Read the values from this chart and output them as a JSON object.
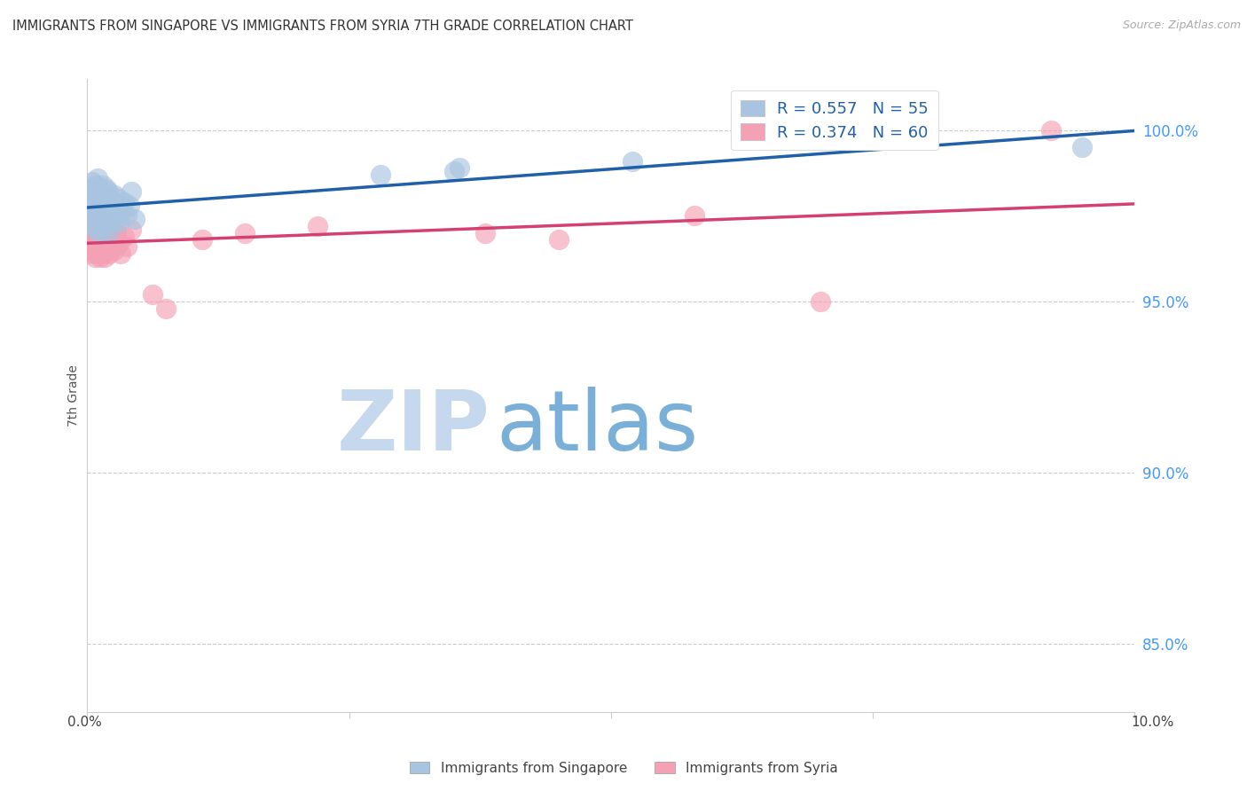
{
  "title": "IMMIGRANTS FROM SINGAPORE VS IMMIGRANTS FROM SYRIA 7TH GRADE CORRELATION CHART",
  "source": "Source: ZipAtlas.com",
  "ylabel": "7th Grade",
  "xlim": [
    0.0,
    10.0
  ],
  "ylim": [
    83.0,
    101.5
  ],
  "yticks": [
    85.0,
    90.0,
    95.0,
    100.0
  ],
  "ytick_labels": [
    "85.0%",
    "90.0%",
    "95.0%",
    "100.0%"
  ],
  "singapore_R": 0.557,
  "singapore_N": 55,
  "syria_R": 0.374,
  "syria_N": 60,
  "singapore_color": "#a8c4e0",
  "singapore_line_color": "#2060a8",
  "syria_color": "#f4a0b5",
  "syria_line_color": "#d44070",
  "watermark_zip": "ZIP",
  "watermark_atlas": "atlas",
  "watermark_zip_color": "#c5d8ee",
  "watermark_atlas_color": "#7ab0d8",
  "singapore_scatter_x": [
    0.02,
    0.03,
    0.04,
    0.05,
    0.05,
    0.06,
    0.06,
    0.07,
    0.07,
    0.08,
    0.08,
    0.09,
    0.09,
    0.1,
    0.1,
    0.11,
    0.11,
    0.12,
    0.12,
    0.13,
    0.13,
    0.14,
    0.14,
    0.15,
    0.15,
    0.16,
    0.17,
    0.17,
    0.18,
    0.18,
    0.19,
    0.2,
    0.2,
    0.21,
    0.22,
    0.22,
    0.23,
    0.24,
    0.25,
    0.26,
    0.27,
    0.28,
    0.3,
    0.3,
    0.32,
    0.35,
    0.38,
    0.4,
    0.42,
    0.45,
    2.8,
    3.5,
    3.55,
    5.2,
    9.5
  ],
  "singapore_scatter_y": [
    97.2,
    97.6,
    98.3,
    97.8,
    98.5,
    97.5,
    98.0,
    97.3,
    98.2,
    97.9,
    98.4,
    97.1,
    98.1,
    97.7,
    98.6,
    97.4,
    98.3,
    97.0,
    97.8,
    98.2,
    97.6,
    97.3,
    98.0,
    97.5,
    98.4,
    97.2,
    97.9,
    98.1,
    97.4,
    98.3,
    97.7,
    97.0,
    98.2,
    97.6,
    97.3,
    98.0,
    97.8,
    97.5,
    97.9,
    98.1,
    97.4,
    97.7,
    97.3,
    98.0,
    97.6,
    97.9,
    97.5,
    97.8,
    98.2,
    97.4,
    98.7,
    98.8,
    98.9,
    99.1,
    99.5
  ],
  "syria_scatter_x": [
    0.02,
    0.02,
    0.03,
    0.03,
    0.04,
    0.04,
    0.05,
    0.05,
    0.06,
    0.06,
    0.06,
    0.07,
    0.07,
    0.08,
    0.08,
    0.09,
    0.09,
    0.1,
    0.1,
    0.1,
    0.11,
    0.11,
    0.12,
    0.12,
    0.13,
    0.13,
    0.14,
    0.14,
    0.15,
    0.15,
    0.16,
    0.17,
    0.17,
    0.18,
    0.18,
    0.19,
    0.2,
    0.2,
    0.21,
    0.22,
    0.23,
    0.24,
    0.25,
    0.26,
    0.28,
    0.3,
    0.32,
    0.35,
    0.38,
    0.42,
    0.62,
    0.75,
    1.1,
    1.5,
    2.2,
    3.8,
    4.5,
    5.8,
    7.0,
    9.2
  ],
  "syria_scatter_y": [
    96.8,
    97.3,
    96.5,
    97.0,
    96.7,
    97.2,
    96.4,
    96.9,
    96.6,
    97.1,
    97.4,
    96.3,
    96.8,
    96.5,
    97.0,
    96.7,
    97.2,
    96.4,
    96.9,
    97.4,
    96.6,
    97.1,
    96.3,
    96.8,
    96.5,
    97.0,
    96.7,
    97.2,
    96.4,
    96.9,
    96.6,
    96.3,
    97.1,
    96.8,
    97.3,
    96.5,
    96.7,
    97.0,
    96.4,
    96.9,
    96.6,
    97.1,
    96.8,
    96.5,
    97.0,
    96.7,
    96.4,
    96.9,
    96.6,
    97.1,
    95.2,
    94.8,
    96.8,
    97.0,
    97.2,
    97.0,
    96.8,
    97.5,
    95.0,
    100.0
  ],
  "background_color": "#ffffff",
  "grid_color": "#cccccc"
}
